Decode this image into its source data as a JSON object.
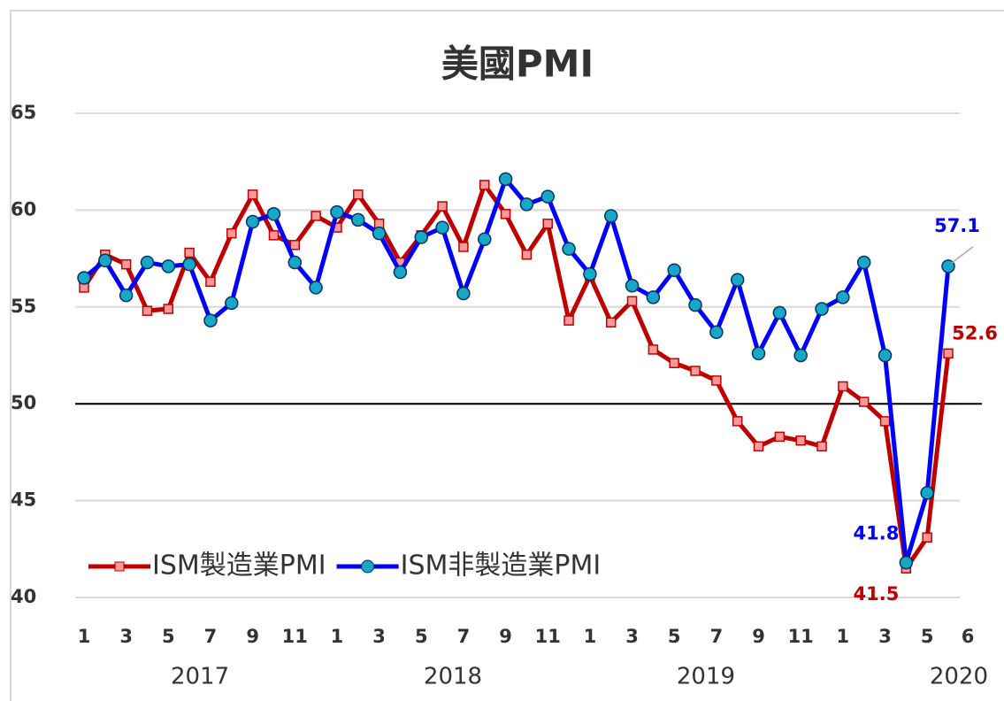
{
  "chart_data": {
    "type": "line",
    "title": "美國PMI",
    "categories": [
      "1",
      null,
      "3",
      null,
      "5",
      null,
      "7",
      null,
      "9",
      null,
      "11",
      null,
      "1",
      null,
      "3",
      null,
      "5",
      null,
      "7",
      null,
      "9",
      null,
      "11",
      null,
      "1",
      null,
      "3",
      null,
      "5",
      null,
      "7",
      null,
      "9",
      null,
      "11",
      null,
      "1",
      null,
      "3",
      null,
      "5",
      "6"
    ],
    "years": [
      "2017",
      "2018",
      "2019",
      "2020"
    ],
    "series": [
      {
        "name": "ISM製造業PMI",
        "color": "#c00000",
        "marker": "square",
        "values": [
          56.0,
          57.7,
          57.2,
          54.8,
          54.9,
          57.8,
          56.3,
          58.8,
          60.8,
          58.7,
          58.2,
          59.7,
          59.1,
          60.8,
          59.3,
          57.3,
          58.7,
          60.2,
          58.1,
          61.3,
          59.8,
          57.7,
          59.3,
          54.3,
          56.6,
          54.2,
          55.3,
          52.8,
          52.1,
          51.7,
          51.2,
          49.1,
          47.8,
          48.3,
          48.1,
          47.8,
          50.9,
          50.1,
          49.1,
          41.5,
          43.1,
          52.6
        ],
        "value_labels": [
          null,
          null,
          null,
          null,
          null,
          null,
          null,
          null,
          null,
          null,
          null,
          null,
          null,
          null,
          null,
          null,
          null,
          null,
          null,
          null,
          null,
          null,
          null,
          null,
          null,
          null,
          null,
          null,
          null,
          null,
          null,
          null,
          null,
          null,
          null,
          null,
          null,
          null,
          null,
          "41.5",
          null,
          "52.6"
        ]
      },
      {
        "name": "ISM非製造業PMI",
        "color": "#0000ff",
        "marker": "circle",
        "values": [
          56.5,
          57.4,
          55.6,
          57.3,
          57.1,
          57.2,
          54.3,
          55.2,
          59.4,
          59.8,
          57.3,
          56.0,
          59.9,
          59.5,
          58.8,
          56.8,
          58.6,
          59.1,
          55.7,
          58.5,
          61.6,
          60.3,
          60.7,
          58.0,
          56.7,
          59.7,
          56.1,
          55.5,
          56.9,
          55.1,
          53.7,
          56.4,
          52.6,
          54.7,
          52.5,
          54.9,
          55.5,
          57.3,
          52.5,
          41.8,
          45.4,
          57.1
        ],
        "value_labels": [
          null,
          null,
          null,
          null,
          null,
          null,
          null,
          null,
          null,
          null,
          null,
          null,
          null,
          null,
          null,
          null,
          null,
          null,
          null,
          null,
          null,
          null,
          null,
          null,
          null,
          null,
          null,
          null,
          null,
          null,
          null,
          null,
          null,
          null,
          null,
          null,
          null,
          null,
          null,
          "41.8",
          null,
          "57.1"
        ]
      }
    ],
    "ylim": [
      40,
      65
    ],
    "yticks": [
      40,
      45,
      50,
      55,
      60,
      65
    ],
    "grid": true,
    "reference_line": 50,
    "legend": "lower left"
  }
}
